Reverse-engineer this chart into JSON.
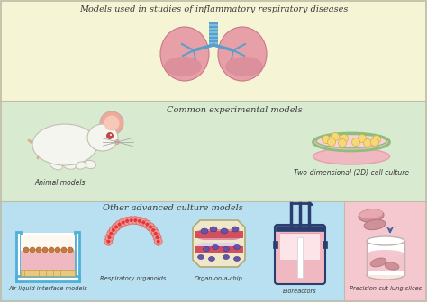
{
  "bg_top": "#f5f5d5",
  "bg_mid": "#d8ead0",
  "bg_bot_left": "#b8e0f0",
  "bg_bot_right": "#f5c8d0",
  "title_top": "Models used in studies of inflammatory respiratory diseases",
  "title_mid": "Common experimental models",
  "title_bot": "Other advanced culture models",
  "label_animal": "Animal models",
  "label_cell": "Two-dimensional (2D) cell culture",
  "label_ali": "Air liquid interface models",
  "label_organoid": "Respiratory organoids",
  "label_chip": "Organ-on-a-chip",
  "label_bio": "Bioreactors",
  "label_pcls": "Precision-cut lung slices",
  "text_color": "#3a3a3a",
  "lung_pink": "#e8a0a8",
  "lung_dark_pink": "#c87888",
  "lung_blue": "#5b9ec9",
  "petri_pink": "#f0b8c0",
  "petri_rim": "#8bbf7a",
  "cell_yellow": "#f5d87a",
  "mouse_white": "#f5f5f0",
  "mouse_pink": "#f0a898",
  "ali_blue": "#4fb0d8",
  "ali_pink": "#f0b8c0",
  "ali_brown": "#c8a070",
  "chip_beige": "#eee8c8",
  "chip_red": "#d05060",
  "chip_purple": "#6855a0",
  "bio_navy": "#2a3f70",
  "bio_pink": "#f0b8c0",
  "pcls_pink": "#d09098",
  "organoid_tan": "#c8a878",
  "organoid_pink": "#f09898",
  "border_color": "#c0bca8"
}
